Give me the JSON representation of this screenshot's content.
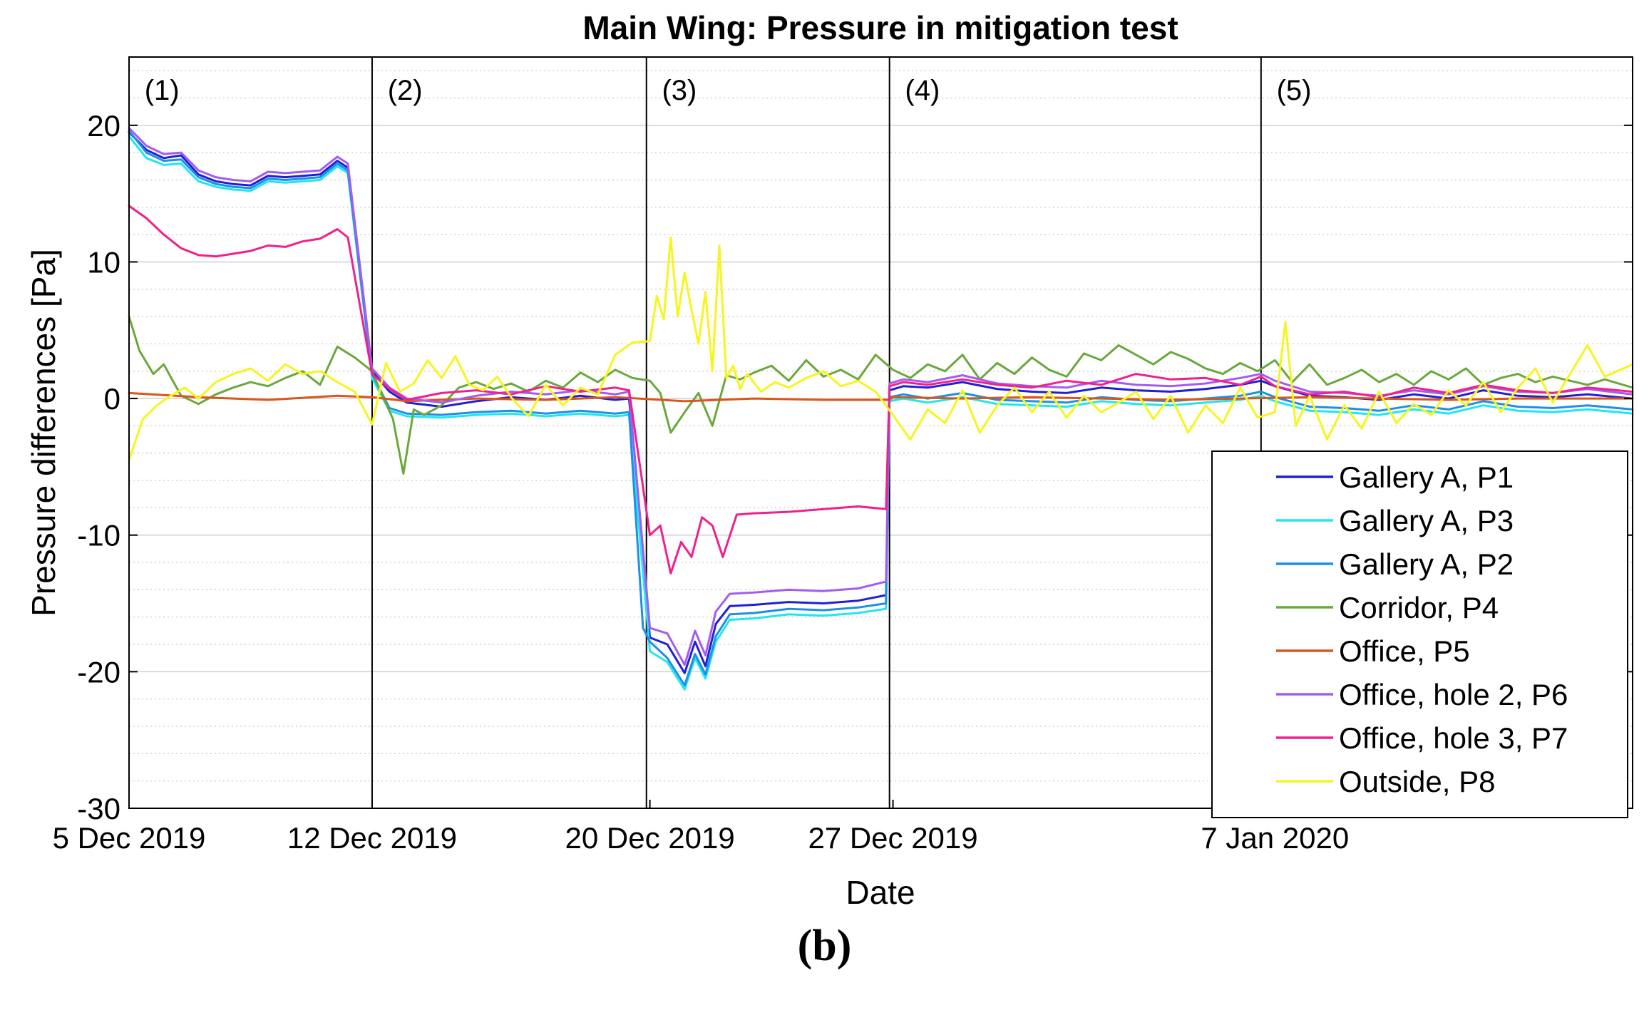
{
  "chart_data": {
    "type": "line",
    "title": "Main Wing: Pressure in mitigation test",
    "xlabel": "Date",
    "ylabel": "Pressure differences [Pa]",
    "x_unit": "days since 5 Dec 2019",
    "xlim": [
      0,
      43.3
    ],
    "ylim": [
      -30,
      25
    ],
    "y_ticks": [
      20,
      10,
      0,
      -10,
      -20,
      -30
    ],
    "x_ticks": [
      {
        "day": 0,
        "label": "5 Dec 2019"
      },
      {
        "day": 7,
        "label": "12 Dec 2019"
      },
      {
        "day": 15,
        "label": "20 Dec 2019"
      },
      {
        "day": 22,
        "label": "27 Dec 2019"
      },
      {
        "day": 33,
        "label": "7 Jan 2020"
      }
    ],
    "grid": true,
    "minor_grid": true,
    "phase_lines": [
      7,
      14.9,
      21.9,
      32.6
    ],
    "phase_labels": [
      {
        "day": 0.2,
        "text": "(1)"
      },
      {
        "day": 7.2,
        "text": "(2)"
      },
      {
        "day": 15.1,
        "text": "(3)"
      },
      {
        "day": 22.1,
        "text": "(4)"
      },
      {
        "day": 32.8,
        "text": "(5)"
      }
    ],
    "legend_position": "bottom-right",
    "series": [
      {
        "name": "Gallery A, P1",
        "color": "#1f1fd6",
        "x": [
          0,
          0.5,
          1,
          1.5,
          2,
          2.5,
          3,
          3.5,
          4,
          4.5,
          5,
          5.5,
          6,
          6.3,
          7,
          7.5,
          8,
          9,
          10,
          11,
          12,
          13,
          14,
          14.4,
          15,
          15.5,
          16,
          16.3,
          16.6,
          16.9,
          17.3,
          18,
          19,
          20,
          21,
          21.8,
          21.9,
          22.3,
          23,
          24,
          25,
          26,
          27,
          28,
          29,
          30,
          31,
          32,
          32.6,
          33,
          34,
          35,
          36,
          37,
          38,
          39,
          40,
          41,
          42,
          43.3
        ],
        "values": [
          19.5,
          18.2,
          17.6,
          17.8,
          16.4,
          15.9,
          15.7,
          15.6,
          16.3,
          16.2,
          16.3,
          16.4,
          17.4,
          16.9,
          2.0,
          0.5,
          -0.3,
          -0.6,
          -0.2,
          0.1,
          -0.1,
          0.2,
          -0.1,
          0.0,
          -17.5,
          -18.0,
          -20.1,
          -17.8,
          -19.6,
          -16.5,
          -15.2,
          -15.1,
          -14.9,
          -15.0,
          -14.8,
          -14.4,
          0.6,
          0.9,
          0.8,
          1.2,
          0.7,
          0.5,
          0.4,
          0.8,
          0.6,
          0.5,
          0.7,
          1.0,
          1.3,
          0.9,
          0.2,
          0.1,
          -0.1,
          0.3,
          0.0,
          0.6,
          0.2,
          0.1,
          0.3,
          0.0
        ]
      },
      {
        "name": "Gallery A, P3",
        "color": "#20e6f0",
        "x": [
          0,
          0.5,
          1,
          1.5,
          2,
          2.5,
          3,
          3.5,
          4,
          4.5,
          5,
          5.5,
          6,
          6.3,
          7,
          7.5,
          8,
          9,
          10,
          11,
          12,
          13,
          14,
          14.4,
          15,
          15.5,
          16,
          16.3,
          16.6,
          16.9,
          17.3,
          18,
          19,
          20,
          21,
          21.8,
          21.9,
          22.3,
          23,
          24,
          25,
          26,
          27,
          28,
          29,
          30,
          31,
          32,
          32.6,
          33,
          34,
          35,
          36,
          37,
          38,
          39,
          40,
          41,
          42,
          43.3
        ],
        "values": [
          19.2,
          17.6,
          17.1,
          17.2,
          15.9,
          15.5,
          15.3,
          15.2,
          15.9,
          15.8,
          15.9,
          16.0,
          17.0,
          16.5,
          1.5,
          -0.9,
          -1.3,
          -1.4,
          -1.2,
          -1.1,
          -1.3,
          -1.1,
          -1.3,
          -1.2,
          -18.5,
          -19.3,
          -21.3,
          -19.0,
          -20.5,
          -17.8,
          -16.2,
          -16.1,
          -15.8,
          -15.9,
          -15.7,
          -15.4,
          -0.2,
          0.0,
          -0.3,
          0.1,
          -0.4,
          -0.5,
          -0.6,
          -0.2,
          -0.4,
          -0.5,
          -0.3,
          -0.1,
          0.2,
          -0.2,
          -0.9,
          -1.0,
          -1.2,
          -0.8,
          -1.1,
          -0.5,
          -0.9,
          -1.0,
          -0.8,
          -1.1
        ]
      },
      {
        "name": "Gallery A, P2",
        "color": "#1e8fe6",
        "x": [
          0,
          0.5,
          1,
          1.5,
          2,
          2.5,
          3,
          3.5,
          4,
          4.5,
          5,
          5.5,
          6,
          6.3,
          7,
          7.5,
          8,
          9,
          10,
          11,
          12,
          13,
          14,
          14.4,
          14.8,
          15,
          15.5,
          16,
          16.3,
          16.6,
          16.9,
          17.3,
          18,
          19,
          20,
          21,
          21.8,
          21.9,
          22.3,
          23,
          24,
          25,
          26,
          27,
          28,
          29,
          30,
          31,
          32,
          32.6,
          33,
          34,
          35,
          36,
          37,
          38,
          39,
          40,
          41,
          42,
          43.3
        ],
        "values": [
          19.6,
          18.0,
          17.4,
          17.5,
          16.2,
          15.7,
          15.5,
          15.4,
          16.1,
          16.0,
          16.1,
          16.2,
          17.2,
          16.7,
          1.8,
          -0.7,
          -1.1,
          -1.2,
          -1.0,
          -0.9,
          -1.1,
          -0.9,
          -1.1,
          -1.0,
          -16.8,
          -17.8,
          -19.0,
          -21.0,
          -18.7,
          -20.2,
          -17.4,
          -15.8,
          -15.7,
          -15.4,
          -15.5,
          -15.3,
          -15.0,
          0.1,
          0.3,
          0.0,
          0.4,
          -0.1,
          -0.2,
          -0.3,
          0.1,
          -0.1,
          -0.2,
          0.0,
          0.2,
          0.5,
          0.1,
          -0.6,
          -0.7,
          -0.9,
          -0.5,
          -0.8,
          -0.2,
          -0.6,
          -0.7,
          -0.5,
          -0.8
        ]
      },
      {
        "name": "Corridor, P4",
        "color": "#6aa83c",
        "x": [
          0,
          0.3,
          0.7,
          1,
          1.5,
          2,
          2.5,
          3,
          3.5,
          4,
          4.5,
          5,
          5.5,
          6,
          6.5,
          7,
          7.3,
          7.6,
          7.9,
          8.2,
          8.5,
          9,
          9.5,
          10,
          10.5,
          11,
          11.5,
          12,
          12.5,
          13,
          13.5,
          14,
          14.5,
          15,
          15.3,
          15.6,
          16,
          16.4,
          16.8,
          17.2,
          17.6,
          18,
          18.5,
          19,
          19.5,
          20,
          20.5,
          21,
          21.5,
          22,
          22.5,
          23,
          23.5,
          24,
          24.5,
          25,
          25.5,
          26,
          26.5,
          27,
          27.5,
          28,
          28.5,
          29,
          29.5,
          30,
          30.5,
          31,
          31.5,
          32,
          32.5,
          33,
          33.5,
          34,
          34.5,
          35,
          35.5,
          36,
          36.5,
          37,
          37.5,
          38,
          38.5,
          39,
          39.5,
          40,
          40.5,
          41,
          41.5,
          42,
          42.5,
          43.3
        ],
        "values": [
          6.0,
          3.5,
          1.8,
          2.5,
          0.2,
          -0.4,
          0.3,
          0.8,
          1.2,
          0.9,
          1.5,
          2.0,
          1.0,
          3.8,
          3.0,
          2.0,
          0.2,
          -1.5,
          -5.5,
          -0.8,
          -1.2,
          -0.5,
          0.8,
          1.2,
          0.7,
          1.1,
          0.5,
          1.3,
          0.8,
          1.9,
          1.2,
          2.1,
          1.5,
          1.3,
          0.4,
          -2.5,
          -1.0,
          0.4,
          -2.0,
          1.7,
          1.4,
          1.9,
          2.4,
          1.3,
          2.8,
          1.6,
          2.1,
          1.4,
          3.2,
          2.1,
          1.5,
          2.5,
          2.0,
          3.2,
          1.4,
          2.6,
          1.8,
          3.0,
          2.1,
          1.6,
          3.3,
          2.8,
          3.9,
          3.2,
          2.5,
          3.4,
          2.9,
          2.2,
          1.8,
          2.6,
          2.0,
          2.8,
          1.2,
          2.5,
          1.0,
          1.5,
          2.1,
          1.2,
          1.8,
          1.0,
          2.0,
          1.4,
          2.2,
          1.0,
          1.5,
          1.8,
          1.2,
          1.6,
          1.3,
          1.0,
          1.4,
          0.8
        ]
      },
      {
        "name": "Office, P5",
        "color": "#d9571b",
        "x": [
          0,
          2,
          4,
          6,
          7,
          8,
          10,
          12,
          14,
          16,
          18,
          20,
          21.9,
          22,
          24,
          26,
          28,
          30,
          32,
          34,
          36,
          38,
          40,
          43.3
        ],
        "values": [
          0.4,
          0.1,
          -0.1,
          0.2,
          0.1,
          -0.2,
          0.0,
          -0.1,
          0.1,
          -0.2,
          0.0,
          -0.1,
          -0.1,
          0.1,
          0.0,
          0.1,
          0.0,
          -0.1,
          0.0,
          0.1,
          0.0,
          -0.1,
          0.0,
          0.0
        ]
      },
      {
        "name": "Office, hole 2, P6",
        "color": "#a45cf0",
        "x": [
          0,
          0.5,
          1,
          1.5,
          2,
          2.5,
          3,
          3.5,
          4,
          4.5,
          5,
          5.5,
          6,
          6.3,
          7,
          7.5,
          8,
          9,
          10,
          11,
          12,
          13,
          14,
          14.4,
          15,
          15.5,
          16,
          16.3,
          16.6,
          16.9,
          17.3,
          18,
          19,
          20,
          21,
          21.8,
          21.9,
          22.3,
          23,
          24,
          25,
          26,
          27,
          28,
          29,
          30,
          31,
          32,
          32.6,
          33,
          34,
          35,
          36,
          37,
          38,
          39,
          40,
          41,
          42,
          43.3
        ],
        "values": [
          19.8,
          18.5,
          17.9,
          18.0,
          16.7,
          16.2,
          16.0,
          15.9,
          16.6,
          16.5,
          16.6,
          16.7,
          17.7,
          17.2,
          2.2,
          0.8,
          0.0,
          -0.3,
          0.2,
          0.5,
          0.3,
          0.6,
          0.3,
          0.5,
          -16.8,
          -17.2,
          -19.5,
          -17.0,
          -18.8,
          -15.6,
          -14.3,
          -14.2,
          -14.0,
          -14.1,
          -13.9,
          -13.4,
          1.1,
          1.4,
          1.2,
          1.7,
          1.1,
          0.9,
          0.8,
          1.3,
          1.0,
          0.9,
          1.1,
          1.5,
          1.8,
          1.3,
          0.5,
          0.4,
          0.2,
          0.6,
          0.3,
          0.9,
          0.5,
          0.4,
          0.7,
          0.3
        ]
      },
      {
        "name": "Office, hole 3, P7",
        "color": "#f0208c",
        "x": [
          0,
          0.5,
          1,
          1.5,
          2,
          2.5,
          3,
          3.5,
          4,
          4.5,
          5,
          5.5,
          6,
          6.3,
          7,
          7.5,
          8,
          9,
          10,
          11,
          12,
          13,
          14,
          14.4,
          15,
          15.3,
          15.6,
          15.9,
          16.2,
          16.5,
          16.8,
          17.1,
          17.5,
          18,
          19,
          20,
          21,
          21.8,
          21.9,
          22.3,
          23,
          24,
          25,
          26,
          27,
          28,
          29,
          30,
          31,
          32,
          32.6,
          33,
          34,
          35,
          36,
          37,
          38,
          39,
          40,
          41,
          42,
          43.3
        ],
        "values": [
          14.1,
          13.2,
          12.0,
          11.0,
          10.5,
          10.4,
          10.6,
          10.8,
          11.2,
          11.1,
          11.5,
          11.7,
          12.4,
          11.8,
          1.8,
          0.7,
          -0.1,
          0.4,
          0.6,
          0.3,
          0.9,
          0.5,
          0.8,
          0.6,
          -10.0,
          -9.3,
          -12.8,
          -10.5,
          -11.6,
          -8.7,
          -9.3,
          -11.6,
          -8.5,
          -8.4,
          -8.3,
          -8.1,
          -7.9,
          -8.1,
          0.9,
          1.2,
          1.0,
          1.4,
          1.0,
          0.8,
          1.3,
          1.0,
          1.8,
          1.4,
          1.5,
          1.0,
          1.6,
          0.9,
          0.3,
          0.5,
          0.1,
          0.8,
          0.4,
          1.0,
          0.6,
          0.4,
          0.8,
          0.5
        ]
      },
      {
        "name": "Outside, P8",
        "color": "#f5f520",
        "x": [
          0,
          0.4,
          0.8,
          1.2,
          1.6,
          2,
          2.5,
          3,
          3.5,
          4,
          4.5,
          5,
          5.5,
          6,
          6.5,
          7,
          7.4,
          7.8,
          8.2,
          8.6,
          9,
          9.4,
          9.8,
          10.2,
          10.6,
          11,
          11.5,
          12,
          12.5,
          13,
          13.5,
          14,
          14.5,
          15,
          15.2,
          15.4,
          15.6,
          15.8,
          16,
          16.2,
          16.4,
          16.6,
          16.8,
          17.0,
          17.2,
          17.4,
          17.6,
          17.8,
          18.2,
          18.6,
          19,
          19.5,
          20,
          20.5,
          21,
          21.5,
          22,
          22.5,
          23,
          23.5,
          24,
          24.5,
          25,
          25.5,
          26,
          26.5,
          27,
          27.5,
          28,
          28.5,
          29,
          29.5,
          30,
          30.5,
          31,
          31.5,
          32,
          32.5,
          33,
          33.3,
          33.6,
          34,
          34.5,
          35,
          35.5,
          36,
          36.5,
          37,
          37.5,
          38,
          38.5,
          39,
          39.5,
          40,
          40.5,
          41,
          41.5,
          42,
          42.5,
          43.3
        ],
        "values": [
          -4.5,
          -1.5,
          -0.5,
          0.2,
          0.8,
          0.0,
          1.2,
          1.8,
          2.2,
          1.3,
          2.5,
          1.8,
          2.0,
          1.2,
          0.5,
          -1.9,
          2.6,
          0.5,
          1.1,
          2.8,
          1.5,
          3.1,
          1.0,
          0.6,
          1.6,
          0.1,
          -1.3,
          1.0,
          -0.5,
          0.8,
          0.3,
          3.2,
          4.1,
          4.2,
          7.5,
          5.8,
          11.8,
          6.0,
          9.2,
          6.5,
          4.0,
          7.8,
          2.0,
          11.2,
          1.5,
          2.4,
          0.7,
          1.8,
          0.5,
          1.2,
          0.8,
          1.5,
          2.0,
          0.9,
          1.3,
          0.5,
          -1.2,
          -3.0,
          -0.8,
          -1.8,
          0.6,
          -2.5,
          -0.5,
          0.8,
          -1.0,
          0.5,
          -1.4,
          0.2,
          -1.0,
          -0.3,
          0.5,
          -1.5,
          0.2,
          -2.5,
          -0.5,
          -1.8,
          0.8,
          -1.4,
          -1.0,
          5.6,
          -2.0,
          0.2,
          -3.0,
          -0.5,
          -2.2,
          0.5,
          -1.8,
          -0.4,
          -1.2,
          0.6,
          -0.5,
          1.2,
          -1.0,
          0.8,
          2.2,
          -0.3,
          1.8,
          3.9,
          1.6,
          2.5
        ]
      }
    ]
  },
  "caption": "(b)"
}
